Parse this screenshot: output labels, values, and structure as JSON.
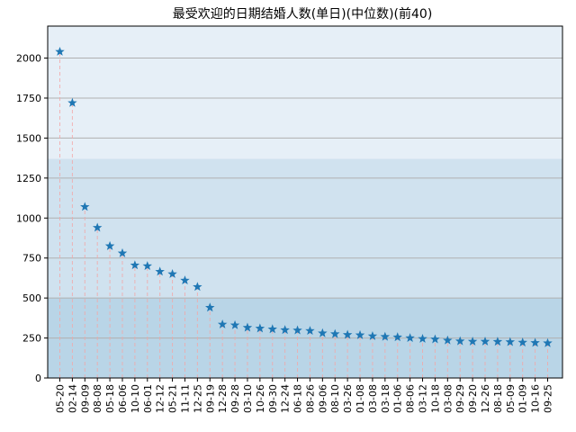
{
  "chart_data": {
    "type": "scatter",
    "title": "最受欢迎的日期结婚人数(单日)(中位数)(前40)",
    "xlabel": "",
    "ylabel": "",
    "ylim": [
      0,
      2200
    ],
    "yticks": [
      0,
      250,
      500,
      750,
      1000,
      1250,
      1500,
      1750,
      2000
    ],
    "ytick_labels": [
      "0",
      "250",
      "500",
      "750",
      "1000",
      "1250",
      "1500",
      "1750",
      "2000"
    ],
    "grid": "horizontal",
    "marker": "star",
    "series_color": "#1f77b4",
    "stem_color": "#f4a6a6",
    "background_bands": [
      {
        "from": 0,
        "to": 500,
        "color": "#b9d5e7"
      },
      {
        "from": 500,
        "to": 1370,
        "color": "#d0e2ef"
      },
      {
        "from": 1370,
        "to": 2200,
        "color": "#e6eff7"
      }
    ],
    "categories": [
      "05-20",
      "02-14",
      "09-09",
      "08-08",
      "05-18",
      "06-06",
      "10-10",
      "06-01",
      "12-12",
      "05-21",
      "11-11",
      "12-25",
      "09-19",
      "12-28",
      "09-28",
      "03-10",
      "10-26",
      "09-30",
      "12-24",
      "06-18",
      "08-26",
      "09-06",
      "08-10",
      "03-26",
      "01-08",
      "03-08",
      "03-18",
      "01-06",
      "08-06",
      "03-12",
      "10-18",
      "03-08",
      "09-29",
      "09-20",
      "12-26",
      "08-18",
      "05-09",
      "01-09",
      "10-16",
      "09-25"
    ],
    "values": [
      2040,
      1720,
      1070,
      940,
      825,
      780,
      705,
      700,
      665,
      650,
      610,
      570,
      440,
      335,
      330,
      315,
      310,
      305,
      300,
      298,
      295,
      280,
      275,
      270,
      268,
      262,
      258,
      255,
      250,
      245,
      242,
      235,
      230,
      228,
      228,
      227,
      225,
      222,
      220,
      218
    ]
  }
}
